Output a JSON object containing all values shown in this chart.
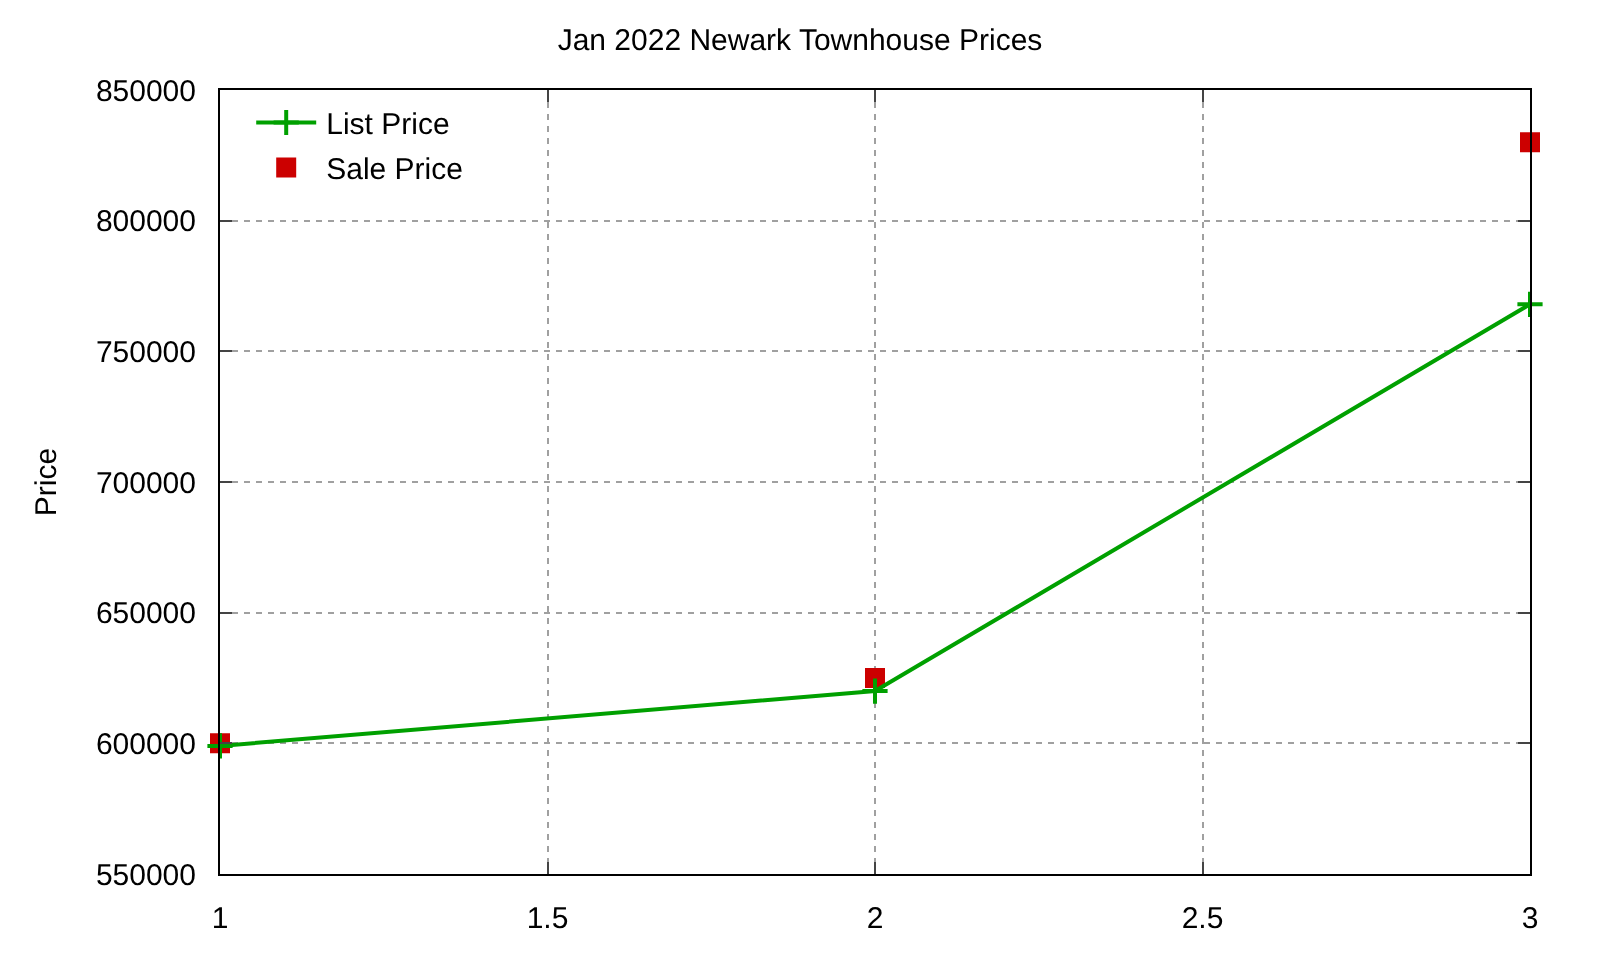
{
  "chart_data": {
    "type": "line",
    "title": "Jan 2022 Newark Townhouse Prices",
    "ylabel": "Price",
    "x": [
      1,
      2,
      3
    ],
    "series": [
      {
        "name": "List Price",
        "color": "#00a000",
        "values": [
          599000,
          620000,
          768000
        ],
        "marker": "cross",
        "line_style": "solid"
      },
      {
        "name": "Sale Price",
        "color": "#cc0000",
        "values": [
          600000,
          625000,
          830000
        ],
        "type": "scatter",
        "marker": "square"
      }
    ],
    "xlim": [
      1,
      3
    ],
    "xticks": [
      1,
      1.5,
      2,
      2.5,
      3
    ],
    "ylim": [
      550000,
      850000
    ],
    "yticks": [
      550000,
      600000,
      650000,
      700000,
      750000,
      800000,
      850000
    ],
    "grid": true,
    "legend": "top left"
  }
}
